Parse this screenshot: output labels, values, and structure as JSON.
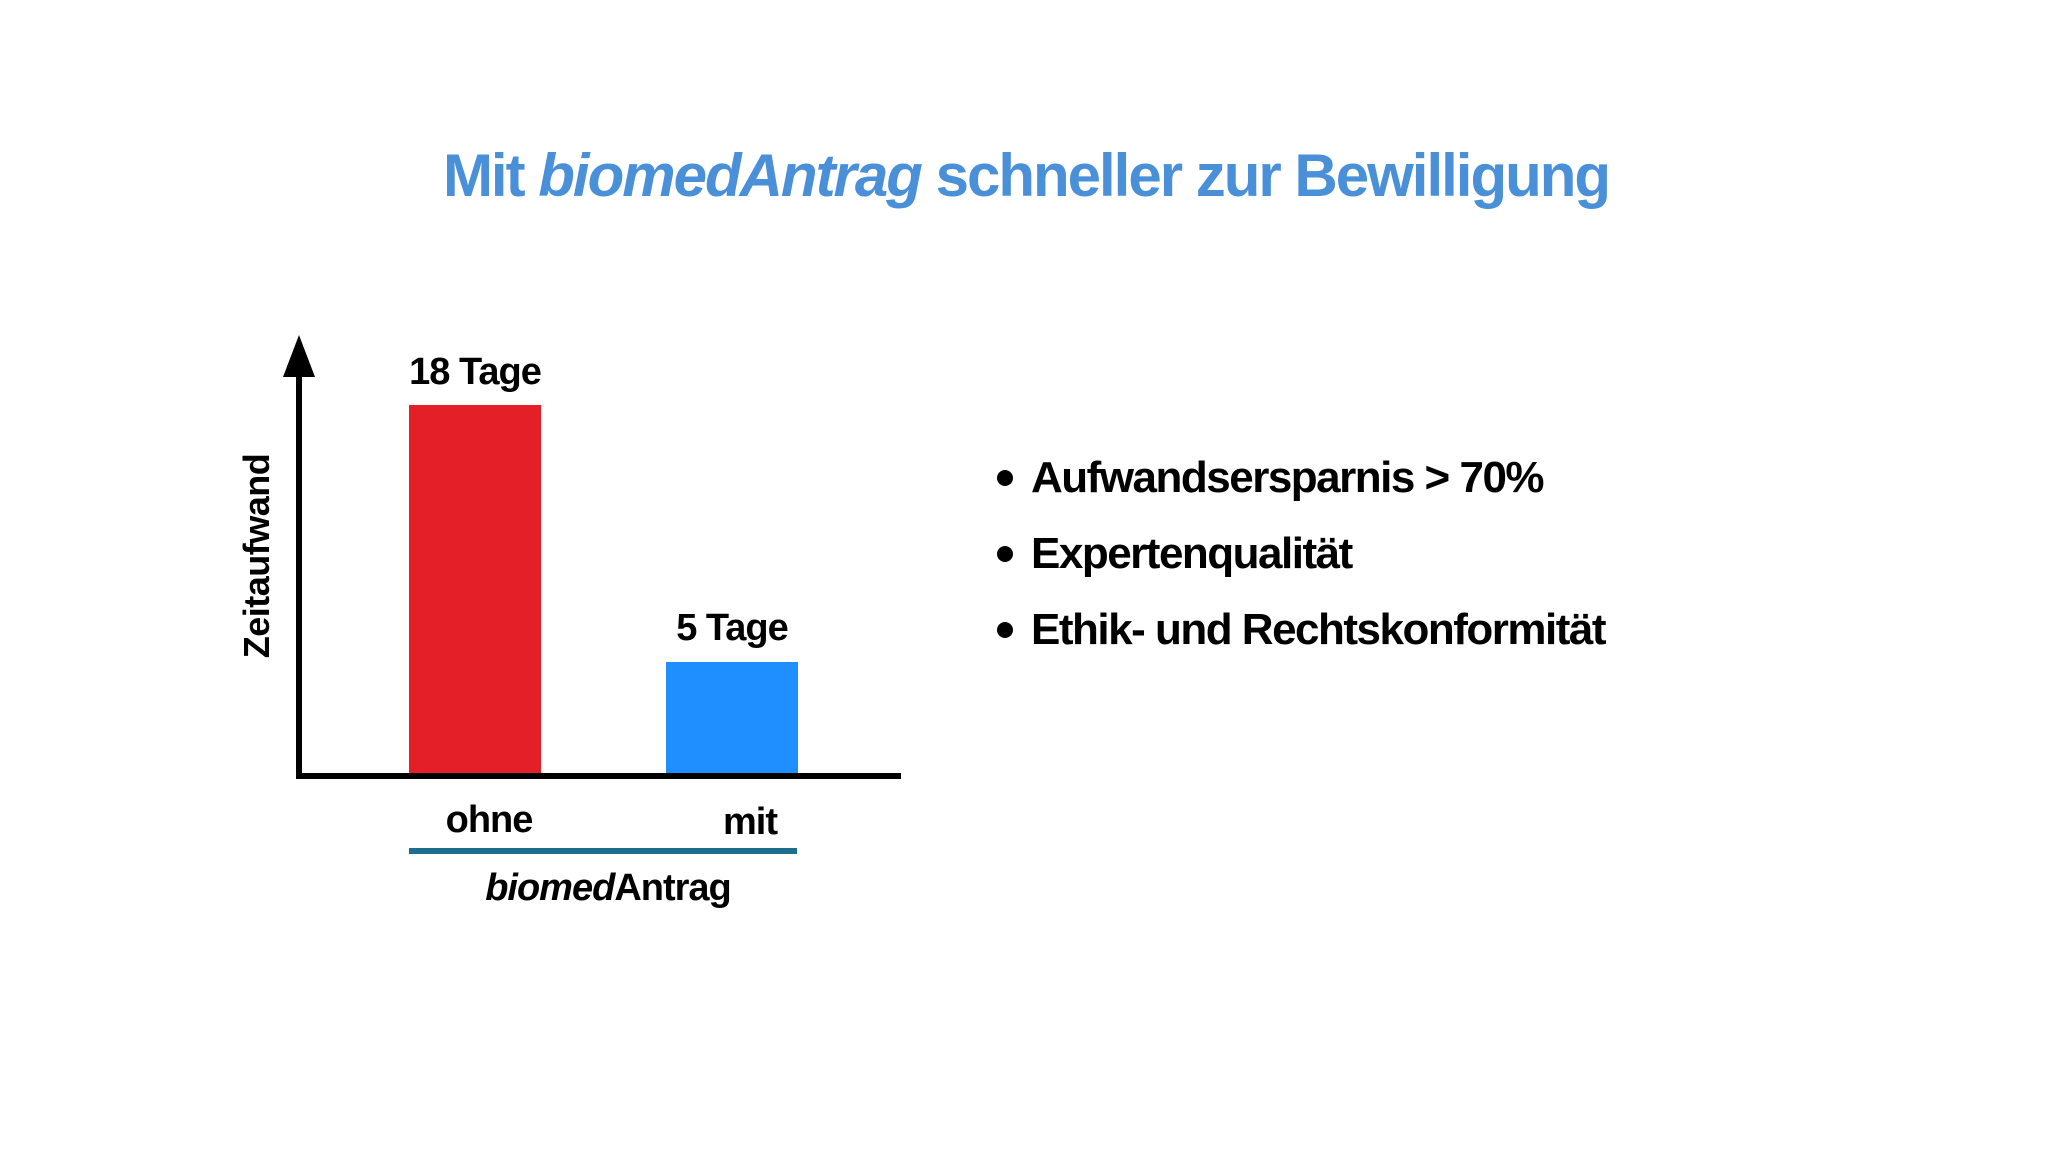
{
  "slide": {
    "title": {
      "prefix": "Mit ",
      "emphasis": "biomedAntrag",
      "suffix": " schneller zur Bewilligung",
      "color": "#4A90D9"
    },
    "bullets": [
      {
        "text": "Aufwandsersparnis > 70%"
      },
      {
        "text": "Expertenqualität"
      },
      {
        "text": "Ethik- und Rechtskonformität"
      }
    ]
  },
  "chart_data": {
    "type": "bar",
    "title": "",
    "xlabel": "biomedAntrag",
    "xlabel_parts": {
      "italic": "biomed",
      "normal": "Antrag"
    },
    "ylabel": "Zeitaufwand",
    "categories": [
      "ohne",
      "mit"
    ],
    "values": [
      18,
      5
    ],
    "unit": "Tage",
    "data_labels": [
      "18 Tage",
      "5 Tage"
    ],
    "colors": [
      "#E41F28",
      "#1F8FFF"
    ],
    "group_line_color": "#1E6C8E",
    "ylim": [
      0,
      20
    ],
    "grid": false,
    "legend": null,
    "annotations": [
      "Aufwandsersparnis > 70%"
    ]
  }
}
